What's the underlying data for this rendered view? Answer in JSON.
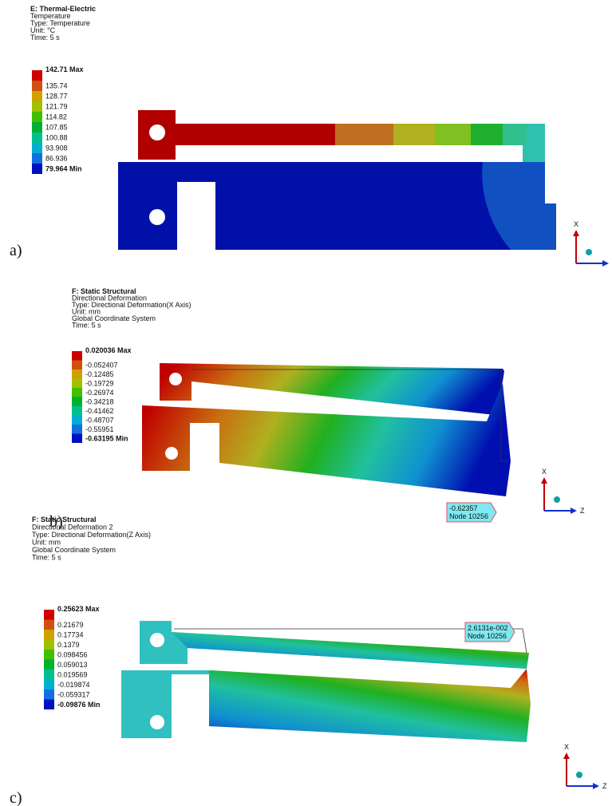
{
  "panels": [
    {
      "label": "a)",
      "header": [
        "E: Thermal-Electric",
        "Temperature",
        "Type: Temperature",
        "Unit: °C",
        "Time: 5 s"
      ],
      "legend": [
        "142.71 Max",
        "135.74",
        "128.77",
        "121.79",
        "114.82",
        "107.85",
        "100.88",
        "93.908",
        "86.936",
        "79.964 Min"
      ],
      "axes": [
        "X"
      ]
    },
    {
      "label": "b)",
      "header": [
        "F: Static Structural",
        "Directional Deformation",
        "Type: Directional Deformation(X Axis)",
        "Unit: mm",
        "Global Coordinate System",
        "Time: 5 s"
      ],
      "legend": [
        "0.020036 Max",
        "-0.052407",
        "-0.12485",
        "-0.19729",
        "-0.26974",
        "-0.34218",
        "-0.41462",
        "-0.48707",
        "-0.55951",
        "-0.63195 Min"
      ],
      "probe": [
        "-0.62357",
        "Node 10256"
      ],
      "axes": [
        "X",
        "Z"
      ]
    },
    {
      "label": "c)",
      "header": [
        "F: Static Structural",
        "Directional Deformation 2",
        "Type: Directional Deformation(Z Axis)",
        "Unit: mm",
        "Global Coordinate System",
        "Time: 5 s"
      ],
      "legend": [
        "0.25623 Max",
        "0.21679",
        "0.17734",
        "0.1379",
        "0.098456",
        "0.059013",
        "0.019569",
        "-0.019874",
        "-0.059317",
        "-0.09876 Min"
      ],
      "probe": [
        "2.6131e-002",
        "Node 10256"
      ],
      "axes": [
        "X",
        "Z"
      ]
    }
  ]
}
